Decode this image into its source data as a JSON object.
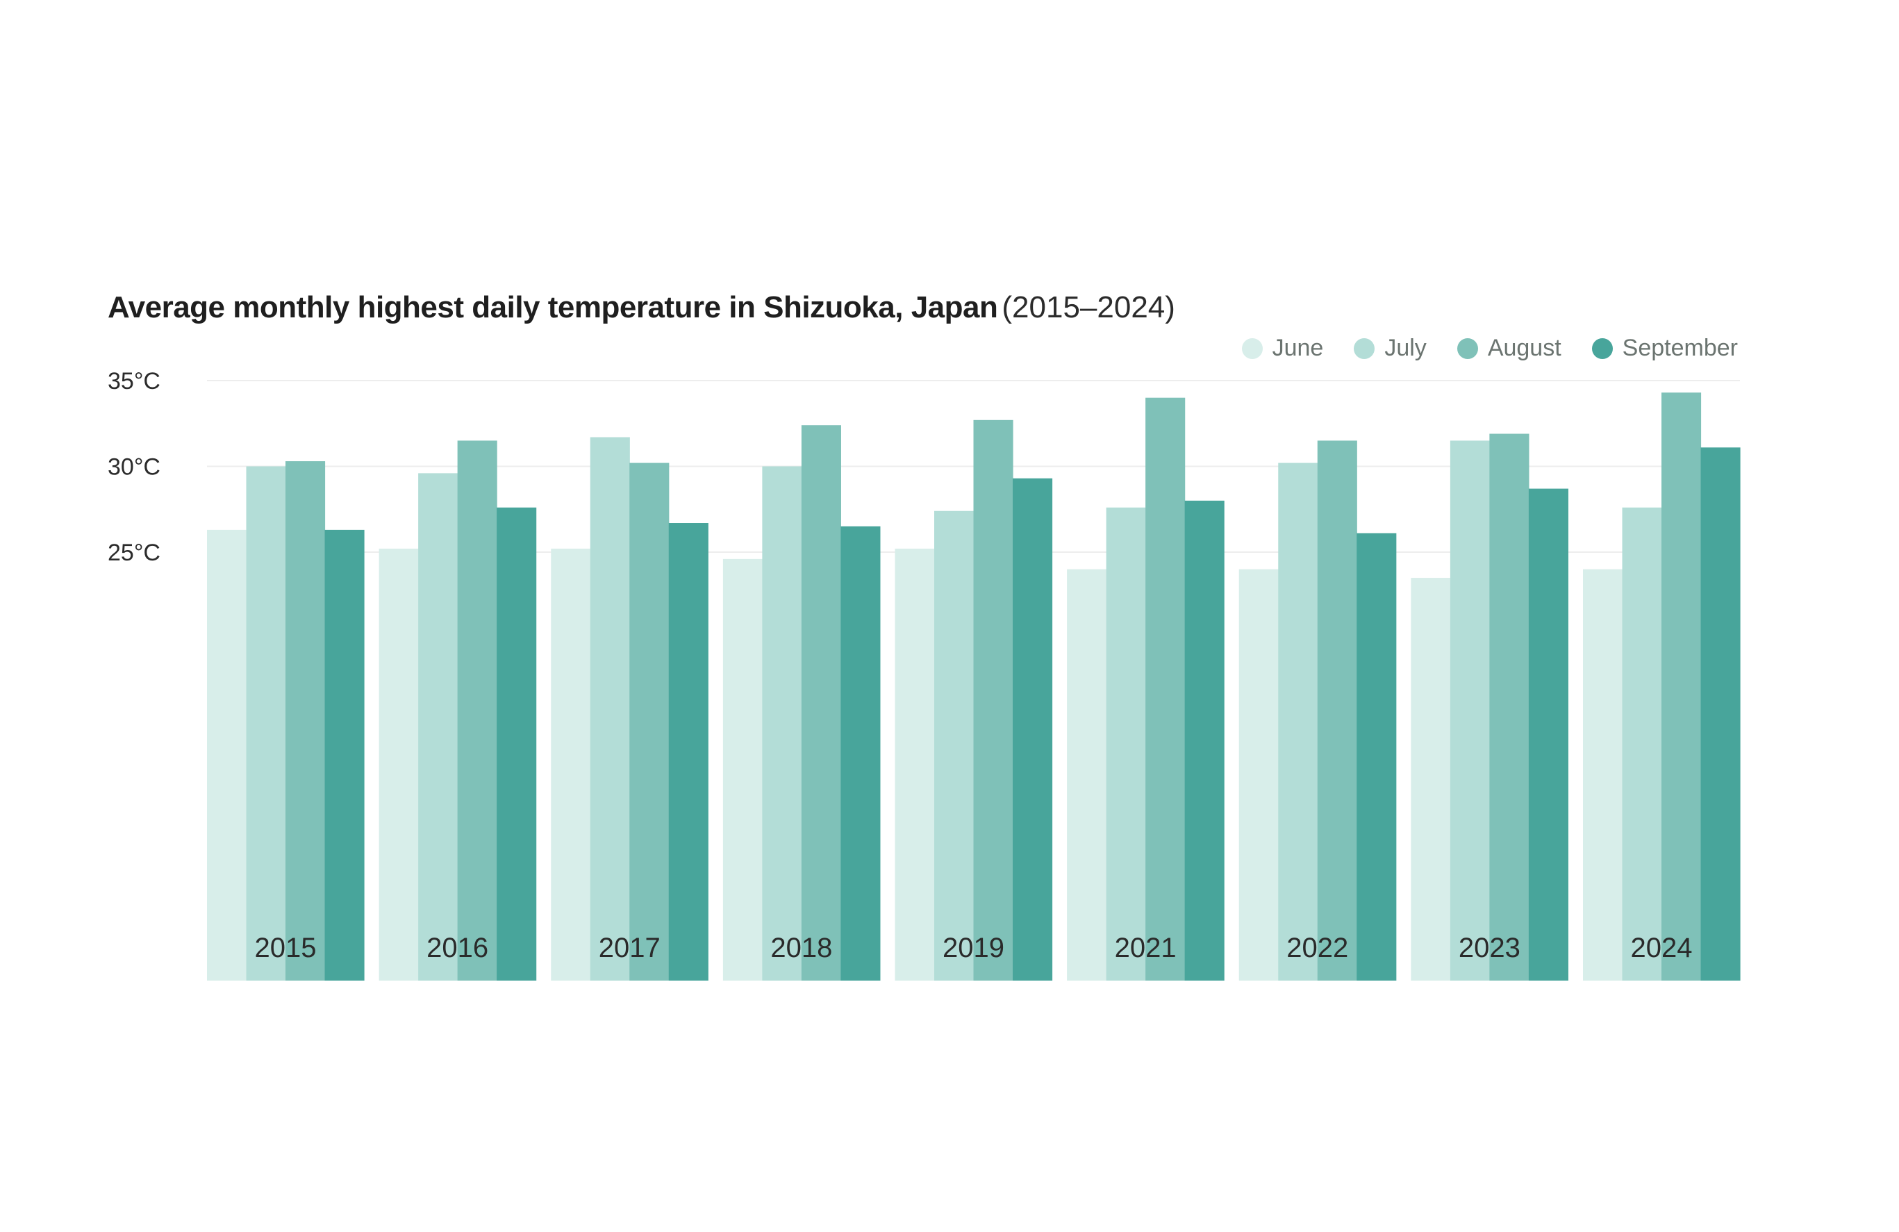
{
  "chart_data": {
    "type": "bar",
    "title": "Average monthly highest daily temperature in Shizuoka, Japan",
    "subtitle": "(2015–2024)",
    "xlabel": "",
    "ylabel": "",
    "ylim": [
      0,
      35
    ],
    "yticks": [
      25,
      30,
      35
    ],
    "ytick_labels": [
      "25°C",
      "30°C",
      "35°C"
    ],
    "grid": true,
    "legend_position": "top-right",
    "categories": [
      "2015",
      "2016",
      "2017",
      "2018",
      "2019",
      "2021",
      "2022",
      "2023",
      "2024"
    ],
    "series": [
      {
        "name": "June",
        "color": "#d8eeea",
        "values": [
          26.3,
          25.2,
          25.2,
          24.6,
          25.2,
          24.0,
          24.0,
          23.5,
          24.0
        ]
      },
      {
        "name": "July",
        "color": "#b3ddd7",
        "values": [
          30.0,
          29.6,
          31.7,
          30.0,
          27.4,
          27.6,
          30.2,
          31.5,
          27.6
        ]
      },
      {
        "name": "August",
        "color": "#7fc1b8",
        "values": [
          30.3,
          31.5,
          30.2,
          32.4,
          32.7,
          34.0,
          31.5,
          31.9,
          34.3
        ]
      },
      {
        "name": "September",
        "color": "#48a59b",
        "values": [
          26.3,
          27.6,
          26.7,
          26.5,
          29.3,
          28.0,
          26.1,
          28.7,
          31.1
        ]
      }
    ]
  }
}
